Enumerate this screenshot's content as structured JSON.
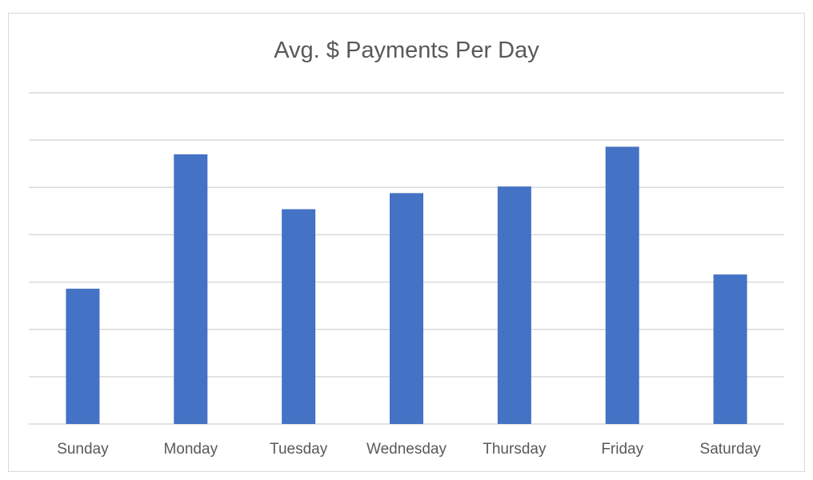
{
  "chart_data": {
    "type": "bar",
    "title": "Avg.  $ Payments Per Day",
    "categories": [
      "Sunday",
      "Monday",
      "Tuesday",
      "Wednesday",
      "Thursday",
      "Friday",
      "Saturday"
    ],
    "values": [
      1.43,
      2.85,
      2.27,
      2.44,
      2.51,
      2.93,
      1.58
    ],
    "ylim": [
      0,
      3.5
    ],
    "gridlines": 7,
    "grid": true,
    "legend": "none",
    "bar_color": "#4472C4",
    "xlabel": "",
    "ylabel": ""
  }
}
